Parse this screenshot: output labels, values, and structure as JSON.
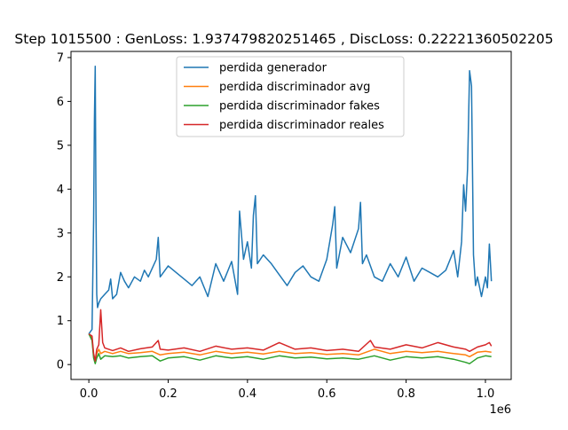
{
  "chart_data": {
    "type": "line",
    "title": "Step 1015500 : GenLoss: 1.937479820251465 , DiscLoss: 0.22221360502205",
    "xlabel": "",
    "ylabel": "",
    "x_offset_label": "1e6",
    "xlim": [
      -45000,
      1065000
    ],
    "ylim": [
      -0.34,
      7.14
    ],
    "xticks": [
      0.0,
      0.2,
      0.4,
      0.6,
      0.8,
      1.0
    ],
    "xtick_labels": [
      "0.0",
      "0.2",
      "0.4",
      "0.6",
      "0.8",
      "1.0"
    ],
    "yticks": [
      0,
      1,
      2,
      3,
      4,
      5,
      6,
      7
    ],
    "ytick_labels": [
      "0",
      "1",
      "2",
      "3",
      "4",
      "5",
      "6",
      "7"
    ],
    "grid": false,
    "legend_position": "top-center",
    "series": [
      {
        "name": "perdida generador",
        "color": "#1f77b4",
        "x": [
          0,
          8000,
          12000,
          14000,
          16000,
          18000,
          20000,
          22000,
          25000,
          30000,
          40000,
          50000,
          55000,
          60000,
          70000,
          80000,
          90000,
          100000,
          115000,
          130000,
          140000,
          150000,
          160000,
          170000,
          175000,
          180000,
          200000,
          220000,
          240000,
          260000,
          280000,
          300000,
          320000,
          340000,
          360000,
          375000,
          380000,
          390000,
          400000,
          410000,
          415000,
          420000,
          425000,
          440000,
          460000,
          480000,
          500000,
          520000,
          540000,
          560000,
          580000,
          600000,
          615000,
          620000,
          625000,
          640000,
          660000,
          680000,
          685000,
          690000,
          700000,
          720000,
          740000,
          760000,
          780000,
          800000,
          820000,
          840000,
          860000,
          880000,
          900000,
          920000,
          930000,
          940000,
          945000,
          950000,
          955000,
          960000,
          965000,
          970000,
          975000,
          980000,
          990000,
          1000000,
          1005000,
          1010000,
          1015000
        ],
        "values": [
          0.7,
          0.8,
          3.3,
          5.6,
          6.8,
          3.4,
          1.6,
          1.3,
          1.4,
          1.5,
          1.6,
          1.7,
          1.95,
          1.5,
          1.6,
          2.1,
          1.9,
          1.75,
          2.0,
          1.9,
          2.15,
          2.0,
          2.2,
          2.4,
          2.9,
          2.0,
          2.25,
          2.1,
          1.95,
          1.8,
          2.0,
          1.55,
          2.3,
          1.9,
          2.35,
          1.6,
          3.5,
          2.4,
          2.8,
          2.2,
          3.4,
          3.85,
          2.3,
          2.5,
          2.3,
          2.05,
          1.8,
          2.1,
          2.25,
          2.0,
          1.9,
          2.4,
          3.2,
          3.6,
          2.2,
          2.9,
          2.55,
          3.1,
          3.7,
          2.3,
          2.5,
          2.0,
          1.9,
          2.3,
          2.0,
          2.45,
          1.9,
          2.2,
          2.1,
          2.0,
          2.15,
          2.6,
          2.0,
          2.8,
          4.1,
          3.5,
          4.45,
          6.7,
          6.35,
          2.5,
          1.8,
          2.0,
          1.55,
          2.0,
          1.75,
          2.75,
          1.9
        ]
      },
      {
        "name": "perdida discriminador avg",
        "color": "#ff7f0e",
        "x": [
          0,
          8000,
          12000,
          16000,
          20000,
          25000,
          30000,
          40000,
          60000,
          80000,
          100000,
          130000,
          160000,
          180000,
          200000,
          240000,
          280000,
          320000,
          360000,
          400000,
          440000,
          480000,
          520000,
          560000,
          600000,
          640000,
          680000,
          720000,
          760000,
          800000,
          840000,
          880000,
          920000,
          950000,
          960000,
          980000,
          1000000,
          1015000
        ],
        "values": [
          0.7,
          0.6,
          0.2,
          0.05,
          0.25,
          0.35,
          0.25,
          0.3,
          0.25,
          0.3,
          0.25,
          0.27,
          0.3,
          0.22,
          0.25,
          0.28,
          0.22,
          0.3,
          0.25,
          0.28,
          0.24,
          0.3,
          0.25,
          0.27,
          0.23,
          0.25,
          0.22,
          0.35,
          0.25,
          0.3,
          0.27,
          0.3,
          0.25,
          0.22,
          0.18,
          0.28,
          0.3,
          0.28
        ]
      },
      {
        "name": "perdida discriminador fakes",
        "color": "#2ca02c",
        "x": [
          0,
          8000,
          12000,
          16000,
          20000,
          25000,
          30000,
          40000,
          60000,
          80000,
          100000,
          130000,
          160000,
          180000,
          200000,
          240000,
          280000,
          320000,
          360000,
          400000,
          440000,
          480000,
          520000,
          560000,
          600000,
          640000,
          680000,
          720000,
          760000,
          800000,
          840000,
          880000,
          920000,
          950000,
          960000,
          980000,
          1000000,
          1015000
        ],
        "values": [
          0.7,
          0.55,
          0.15,
          0.02,
          0.15,
          0.25,
          0.12,
          0.2,
          0.18,
          0.2,
          0.15,
          0.18,
          0.2,
          0.08,
          0.15,
          0.18,
          0.1,
          0.2,
          0.15,
          0.18,
          0.12,
          0.2,
          0.15,
          0.17,
          0.13,
          0.15,
          0.12,
          0.2,
          0.1,
          0.18,
          0.15,
          0.18,
          0.12,
          0.05,
          0.02,
          0.15,
          0.2,
          0.18
        ]
      },
      {
        "name": "perdida discriminador reales",
        "color": "#d62728",
        "x": [
          0,
          8000,
          12000,
          16000,
          20000,
          25000,
          30000,
          35000,
          40000,
          60000,
          80000,
          100000,
          130000,
          160000,
          175000,
          180000,
          200000,
          240000,
          280000,
          320000,
          360000,
          400000,
          440000,
          480000,
          520000,
          560000,
          600000,
          640000,
          680000,
          710000,
          720000,
          760000,
          800000,
          840000,
          880000,
          920000,
          950000,
          960000,
          980000,
          1000000,
          1010000,
          1015000
        ],
        "values": [
          0.7,
          0.65,
          0.25,
          0.08,
          0.35,
          0.45,
          1.25,
          0.5,
          0.38,
          0.32,
          0.38,
          0.3,
          0.36,
          0.4,
          0.55,
          0.35,
          0.33,
          0.38,
          0.3,
          0.42,
          0.35,
          0.38,
          0.33,
          0.5,
          0.35,
          0.38,
          0.32,
          0.35,
          0.3,
          0.55,
          0.4,
          0.35,
          0.45,
          0.38,
          0.5,
          0.4,
          0.35,
          0.3,
          0.4,
          0.45,
          0.5,
          0.42
        ]
      }
    ]
  }
}
